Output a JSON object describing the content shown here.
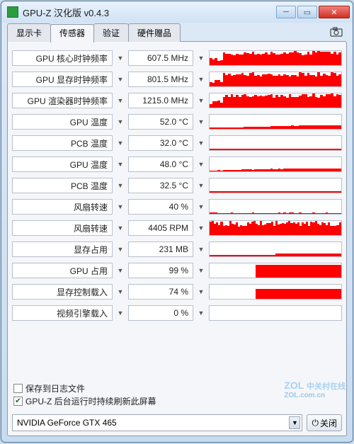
{
  "window": {
    "title": "GPU-Z 汉化版 v0.4.3",
    "icon_color": "#2a9d3f"
  },
  "tabs": [
    {
      "label": "显示卡",
      "active": false
    },
    {
      "label": "传感器",
      "active": true
    },
    {
      "label": "验证",
      "active": false
    },
    {
      "label": "硬件赠品",
      "active": false
    }
  ],
  "sensors": [
    {
      "label": "GPU 核心时钟频率",
      "value": "607.5 MHz",
      "fill_pct": 75,
      "pattern": "jagged_high"
    },
    {
      "label": "GPU 显存时钟频率",
      "value": "801.5 MHz",
      "fill_pct": 78,
      "pattern": "jagged_high"
    },
    {
      "label": "GPU 渲染器时钟频率",
      "value": "1215.0 MHz",
      "fill_pct": 80,
      "pattern": "jagged_high"
    },
    {
      "label": "GPU 温度",
      "value": "52.0 °C",
      "fill_pct": 25,
      "pattern": "rising"
    },
    {
      "label": "PCB 温度",
      "value": "32.0 °C",
      "fill_pct": 12,
      "pattern": "low_flat"
    },
    {
      "label": "GPU 温度",
      "value": "48.0 °C",
      "fill_pct": 22,
      "pattern": "rising"
    },
    {
      "label": "PCB 温度",
      "value": "32.5 °C",
      "fill_pct": 12,
      "pattern": "low_flat"
    },
    {
      "label": "风扇转速",
      "value": "40 %",
      "fill_pct": 8,
      "pattern": "very_low"
    },
    {
      "label": "风扇转速",
      "value": "4405 RPM",
      "fill_pct": 95,
      "pattern": "dense_noise"
    },
    {
      "label": "显存占用",
      "value": "231 MB",
      "fill_pct": 20,
      "pattern": "step"
    },
    {
      "label": "GPU 占用",
      "value": "99 %",
      "fill_pct": 90,
      "pattern": "block_right"
    },
    {
      "label": "显存控制载入",
      "value": "74 %",
      "fill_pct": 70,
      "pattern": "block_right"
    },
    {
      "label": "视频引擎载入",
      "value": "0 %",
      "fill_pct": 0,
      "pattern": "none"
    }
  ],
  "checkboxes": {
    "save_log": {
      "label": "保存到日志文件",
      "checked": false
    },
    "refresh_bg": {
      "label": "GPU-Z 后台运行时持续刷新此屏幕",
      "checked": true
    }
  },
  "gpu_select": {
    "value": "NVIDIA GeForce GTX 465"
  },
  "close_button": {
    "label": "关闭"
  },
  "watermark": {
    "brand": "ZOL",
    "sub": "中关村在线",
    "url": "ZOL.com.cn"
  },
  "colors": {
    "graph_red": "#ff0000",
    "border": "#b8c0cc",
    "panel_bg": "#f4f6f9"
  }
}
